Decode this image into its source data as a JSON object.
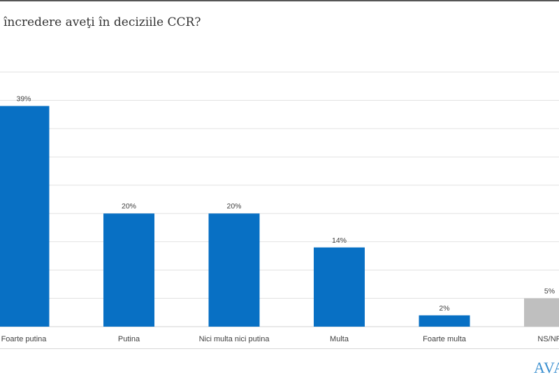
{
  "title": "încredere aveţi în deciziile CCR?",
  "logo_text": "AVAN",
  "chart_data": {
    "type": "bar",
    "title": "încredere aveţi în deciziile CCR?",
    "categories": [
      "Foarte putina",
      "Putina",
      "Nici multa nici putina",
      "Multa",
      "Foarte multa",
      "NS/NR"
    ],
    "values": [
      39,
      20,
      20,
      14,
      2,
      5
    ],
    "data_labels": [
      "39%",
      "20%",
      "20%",
      "14%",
      "2%",
      "5%"
    ],
    "colors": [
      "#0870c4",
      "#0870c4",
      "#0870c4",
      "#0870c4",
      "#0870c4",
      "#bfbfbf"
    ],
    "ylim": [
      0,
      45
    ],
    "grid": true,
    "xlabel": "",
    "ylabel": ""
  }
}
